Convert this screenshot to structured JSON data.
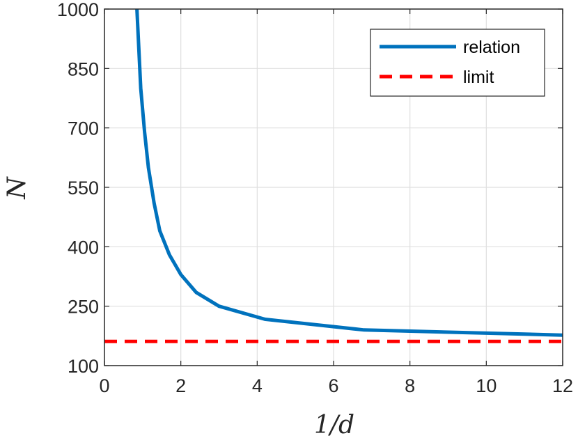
{
  "chart_data": {
    "type": "line",
    "title": "",
    "xlabel": "1/d",
    "ylabel": "N",
    "xlim": [
      0,
      12
    ],
    "ylim": [
      100,
      1000
    ],
    "xticks": [
      0,
      2,
      4,
      6,
      8,
      10,
      12
    ],
    "yticks": [
      100,
      250,
      400,
      550,
      700,
      850,
      1000
    ],
    "grid": true,
    "legend_position": "top-right",
    "series": [
      {
        "name": "relation",
        "style": "solid",
        "color": "#0072BD",
        "x": [
          0.85,
          0.95,
          1.05,
          1.15,
          1.3,
          1.45,
          1.7,
          2.0,
          2.4,
          3.0,
          4.2,
          6.8,
          12.0
        ],
        "y": [
          1000,
          800,
          690,
          600,
          510,
          440,
          380,
          330,
          285,
          250,
          217,
          190,
          177
        ]
      },
      {
        "name": "limit",
        "style": "dashed",
        "color": "#FF0000",
        "x": [
          0,
          12
        ],
        "y": [
          161,
          161
        ]
      }
    ]
  }
}
